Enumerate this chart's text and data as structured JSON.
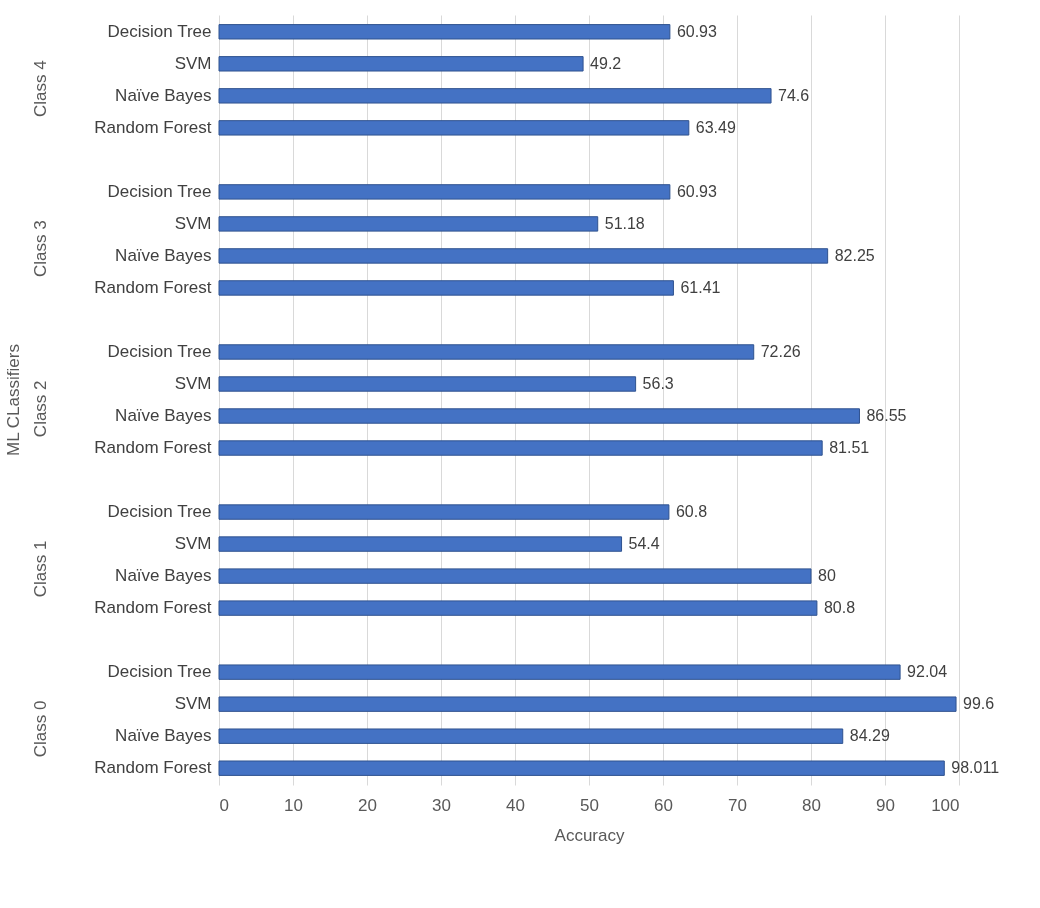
{
  "chart_data": {
    "type": "bar",
    "orientation": "horizontal",
    "xlabel": "Accuracy",
    "ylabel": "ML CLassifiers",
    "categories": [
      "Decision Tree",
      "SVM",
      "Naïve Bayes",
      "Random Forest",
      "Decision Tree",
      "SVM",
      "Naïve Bayes",
      "Random Forest",
      "Decision Tree",
      "SVM",
      "Naïve Bayes",
      "Random Forest",
      "Decision Tree",
      "SVM",
      "Naïve Bayes",
      "Random Forest",
      "Decision Tree",
      "SVM",
      "Naïve Bayes",
      "Random Forest"
    ],
    "values": [
      60.93,
      49.2,
      74.6,
      63.49,
      60.93,
      51.18,
      82.25,
      61.41,
      72.26,
      56.3,
      86.55,
      81.51,
      60.8,
      54.4,
      80,
      80.8,
      92.04,
      99.6,
      84.29,
      98.011
    ],
    "color": "#4472c4",
    "xlim": [
      0,
      100
    ],
    "xticks": [
      0,
      10,
      20,
      30,
      40,
      50,
      60,
      70,
      80,
      90,
      100
    ],
    "grid": "x",
    "data_labels": true,
    "annotations": [
      "Class 4",
      "Class 3",
      "Class 2",
      "Class 1",
      "Class 0"
    ]
  }
}
